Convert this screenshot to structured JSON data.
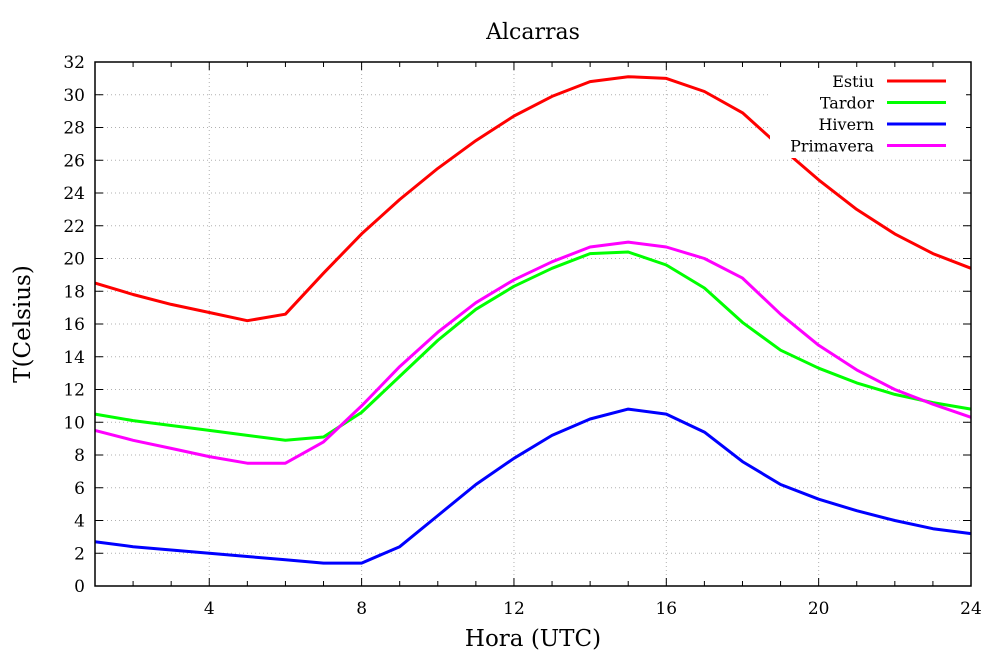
{
  "chart_data": {
    "type": "line",
    "title": "Alcarras",
    "xlabel": "Hora (UTC)",
    "ylabel": "T(Celsius)",
    "xlim": [
      1,
      24
    ],
    "ylim": [
      0,
      32
    ],
    "x_ticks": [
      "4",
      "8",
      "12",
      "16",
      "20",
      "24"
    ],
    "y_ticks": [
      "0",
      "2",
      "4",
      "6",
      "8",
      "10",
      "12",
      "14",
      "16",
      "18",
      "20",
      "22",
      "24",
      "26",
      "28",
      "30",
      "32"
    ],
    "grid": true,
    "legend_position": "top-right",
    "x": [
      1,
      2,
      3,
      4,
      5,
      6,
      7,
      8,
      9,
      10,
      11,
      12,
      13,
      14,
      15,
      16,
      17,
      18,
      19,
      20,
      21,
      22,
      23,
      24
    ],
    "series": [
      {
        "name": "Estiu",
        "color": "#ff0000",
        "values": [
          18.5,
          17.8,
          17.2,
          16.7,
          16.2,
          16.6,
          19.1,
          21.5,
          23.6,
          25.5,
          27.2,
          28.7,
          29.9,
          30.8,
          31.1,
          31.0,
          30.2,
          28.9,
          26.8,
          24.8,
          23.0,
          21.5,
          20.3,
          19.4
        ]
      },
      {
        "name": "Tardor",
        "color": "#00ff00",
        "values": [
          10.5,
          10.1,
          9.8,
          9.5,
          9.2,
          8.9,
          9.1,
          10.6,
          12.8,
          15.0,
          16.9,
          18.3,
          19.4,
          20.3,
          20.4,
          19.6,
          18.2,
          16.1,
          14.4,
          13.3,
          12.4,
          11.7,
          11.2,
          10.8
        ]
      },
      {
        "name": "Hivern",
        "color": "#0000ff",
        "values": [
          2.7,
          2.4,
          2.2,
          2.0,
          1.8,
          1.6,
          1.4,
          1.4,
          2.4,
          4.3,
          6.2,
          7.8,
          9.2,
          10.2,
          10.8,
          10.5,
          9.4,
          7.6,
          6.2,
          5.3,
          4.6,
          4.0,
          3.5,
          3.2
        ]
      },
      {
        "name": "Primavera",
        "color": "#ff00ff",
        "values": [
          9.5,
          8.9,
          8.4,
          7.9,
          7.5,
          7.5,
          8.8,
          11.0,
          13.4,
          15.5,
          17.3,
          18.7,
          19.8,
          20.7,
          21.0,
          20.7,
          20.0,
          18.8,
          16.6,
          14.7,
          13.2,
          12.0,
          11.1,
          10.3
        ]
      }
    ]
  }
}
